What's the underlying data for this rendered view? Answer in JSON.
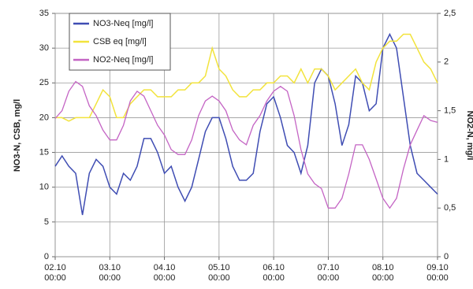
{
  "chart_data": {
    "type": "line",
    "ylabel": "NO3-N, CSB, mg/l",
    "y2label": "NO2-N, mg/l",
    "categories": [
      "02.10\n00:00",
      null,
      null,
      null,
      null,
      null,
      null,
      null,
      "03.10\n00:00",
      null,
      null,
      null,
      null,
      null,
      null,
      null,
      "04.10\n00:00",
      null,
      null,
      null,
      null,
      null,
      null,
      null,
      "05.10\n00:00",
      null,
      null,
      null,
      null,
      null,
      null,
      null,
      "06.10\n00:00",
      null,
      null,
      null,
      null,
      null,
      null,
      null,
      "07.10\n00:00",
      null,
      null,
      null,
      null,
      null,
      null,
      null,
      "08.10\n00:00",
      null,
      null,
      null,
      null,
      null,
      null,
      null,
      "09.10\n00:00"
    ],
    "series": [
      {
        "name": "NO3-Neq [mg/l]",
        "color": "#3f4db3",
        "values": [
          13,
          14.5,
          13,
          12,
          6,
          12,
          14,
          13,
          10,
          9,
          12,
          11,
          13,
          17,
          17,
          15,
          12,
          13,
          10,
          8,
          10,
          14,
          18,
          20,
          20,
          17,
          13,
          11,
          11,
          12,
          18,
          22,
          23,
          20,
          16,
          15,
          12,
          16,
          25,
          27,
          26,
          22,
          16,
          19,
          26,
          25,
          21,
          22,
          30,
          32,
          30,
          23,
          16,
          12,
          11,
          10,
          9
        ]
      },
      {
        "name": "CSB eq [mg/l]",
        "color": "#f2e33c",
        "values": [
          20,
          20,
          19.5,
          20,
          20,
          20,
          22,
          24,
          23,
          20,
          20,
          22,
          23,
          24,
          24,
          23,
          23,
          23,
          24,
          24,
          25,
          25,
          26,
          30,
          27,
          26,
          24,
          23,
          23,
          24,
          24,
          25,
          25,
          26,
          26,
          25,
          27,
          25,
          27,
          27,
          26,
          24,
          25,
          26,
          27,
          25,
          24,
          28,
          30,
          31,
          31,
          32,
          32,
          30,
          28,
          27,
          25
        ]
      },
      {
        "name": "NO2-Neq [mg/l]",
        "color": "#c464c4",
        "axis": "y2",
        "values": [
          1.42,
          1.5,
          1.7,
          1.8,
          1.75,
          1.55,
          1.45,
          1.3,
          1.2,
          1.2,
          1.35,
          1.6,
          1.7,
          1.65,
          1.5,
          1.35,
          1.25,
          1.1,
          1.05,
          1.05,
          1.2,
          1.45,
          1.6,
          1.65,
          1.6,
          1.5,
          1.3,
          1.2,
          1.15,
          1.35,
          1.45,
          1.6,
          1.7,
          1.75,
          1.7,
          1.45,
          1.1,
          0.85,
          0.75,
          0.7,
          0.5,
          0.5,
          0.6,
          0.85,
          1.15,
          1.15,
          1.0,
          0.8,
          0.6,
          0.5,
          0.6,
          0.9,
          1.15,
          1.3,
          1.45,
          1.4,
          1.38
        ]
      }
    ],
    "ylim": [
      0,
      35
    ],
    "yticks": [
      0,
      5,
      10,
      15,
      20,
      25,
      30,
      35
    ],
    "y2lim": [
      0,
      2.5
    ],
    "y2ticks": [
      0,
      {
        "value": 0.5,
        "label": "0,5"
      },
      1,
      {
        "value": 1.5,
        "label": "1,5"
      },
      2,
      {
        "value": 2.5,
        "label": "2,5"
      }
    ],
    "grid": true,
    "legend": "upper-left"
  }
}
